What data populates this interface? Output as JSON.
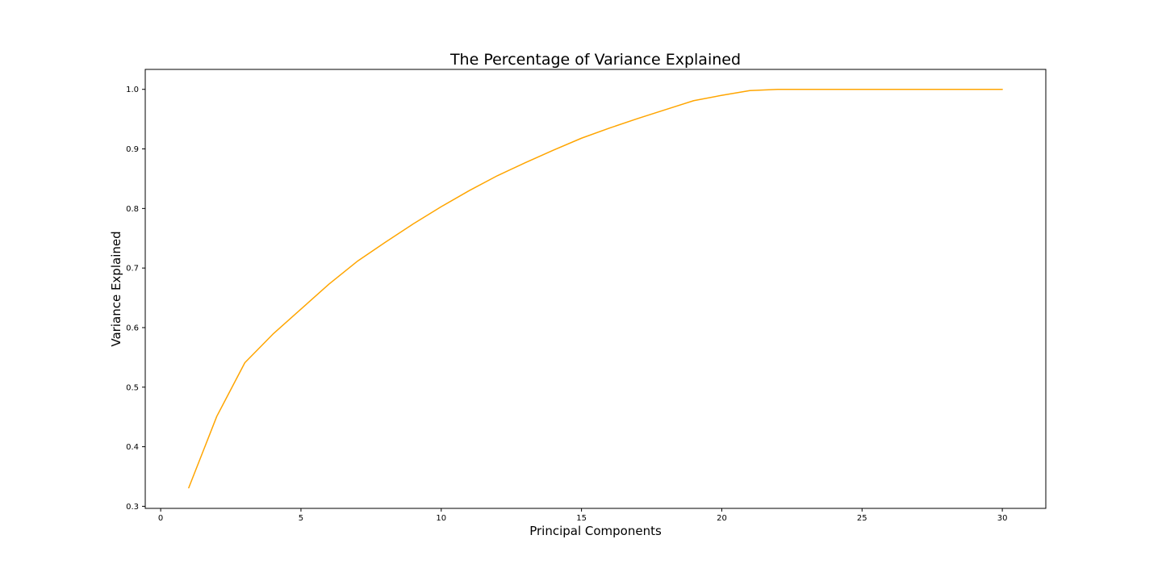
{
  "chart_data": {
    "type": "line",
    "title": "The Percentage of Variance Explained",
    "xlabel": "Principal Components",
    "ylabel": "Variance Explained",
    "xlim": [
      -0.55,
      31.55
    ],
    "ylim": [
      0.2965,
      1.0335
    ],
    "xticks": [
      0,
      5,
      10,
      15,
      20,
      25,
      30
    ],
    "yticks": [
      0.3,
      0.4,
      0.5,
      0.6,
      0.7,
      0.8,
      0.9,
      1.0
    ],
    "xtick_labels": [
      "0",
      "5",
      "10",
      "15",
      "20",
      "25",
      "30"
    ],
    "ytick_labels": [
      "0.3",
      "0.4",
      "0.5",
      "0.6",
      "0.7",
      "0.8",
      "0.9",
      "1.0"
    ],
    "grid": false,
    "series": [
      {
        "color": "#ffa500",
        "x": [
          1,
          2,
          3,
          4,
          5,
          6,
          7,
          8,
          9,
          10,
          11,
          12,
          13,
          14,
          15,
          16,
          17,
          18,
          19,
          20,
          21,
          22,
          23,
          24,
          25,
          26,
          27,
          28,
          29,
          30
        ],
        "values": [
          0.331,
          0.451,
          0.541,
          0.589,
          0.631,
          0.673,
          0.711,
          0.743,
          0.774,
          0.803,
          0.83,
          0.855,
          0.877,
          0.898,
          0.918,
          0.935,
          0.951,
          0.966,
          0.981,
          0.99,
          0.998,
          1.0,
          1.0,
          1.0,
          1.0,
          1.0,
          1.0,
          1.0,
          1.0,
          1.0
        ]
      }
    ]
  }
}
